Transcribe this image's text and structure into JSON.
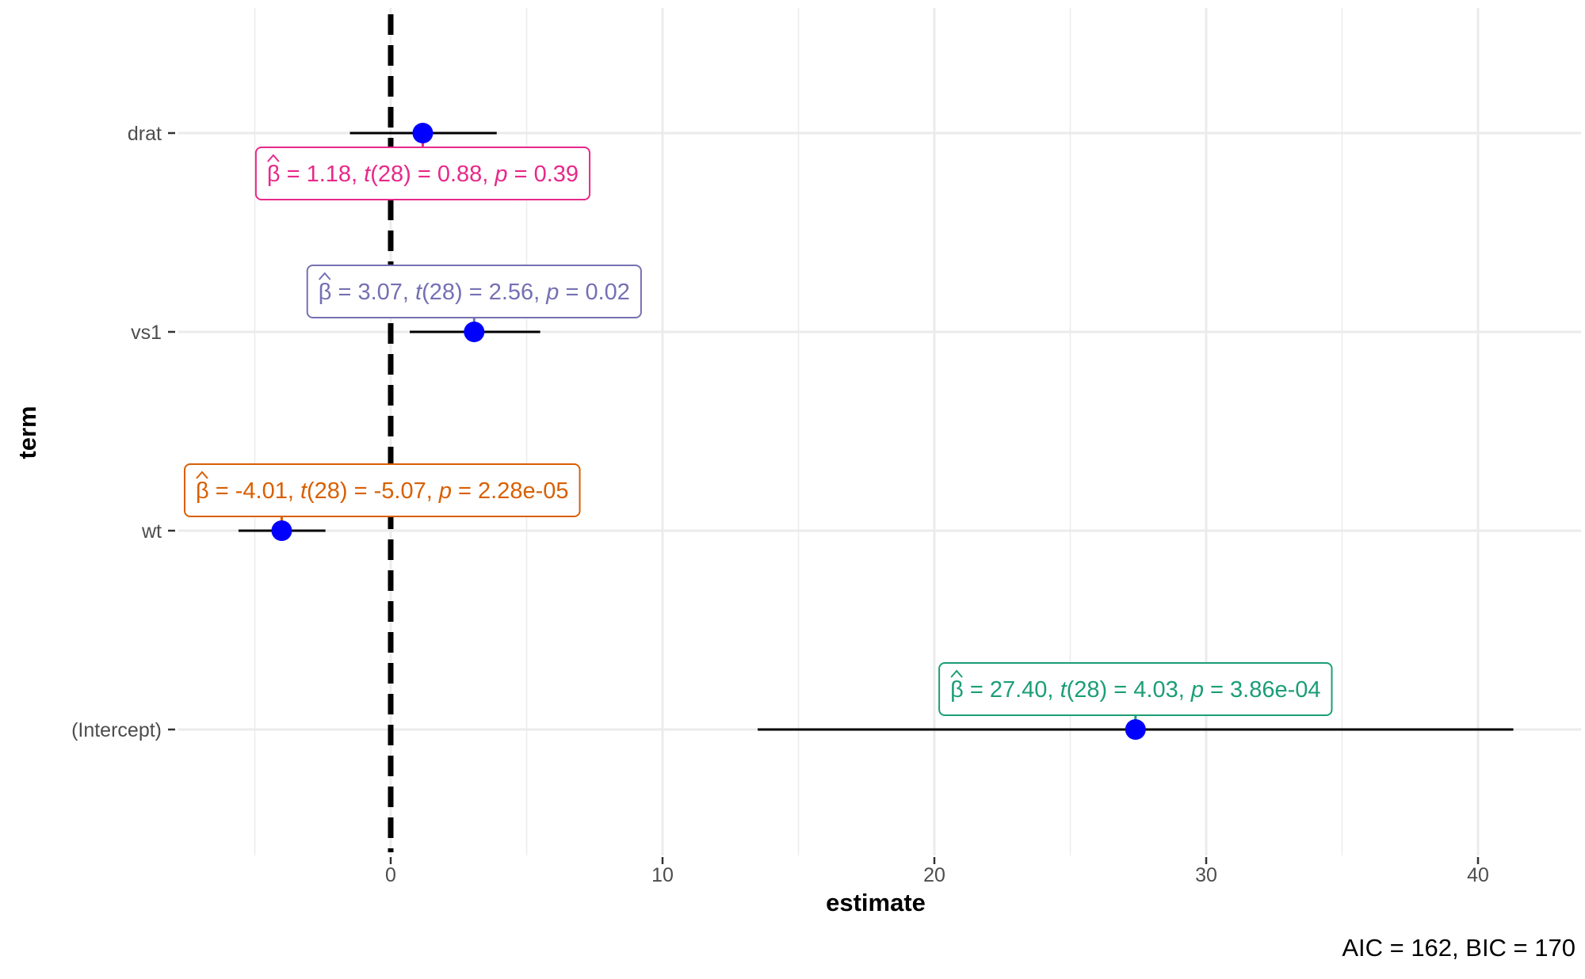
{
  "chart_data": {
    "type": "scatter",
    "xlabel": "estimate",
    "ylabel": "term",
    "xlim": [
      -8.5,
      43
    ],
    "x_ticks": [
      0,
      10,
      20,
      30,
      40
    ],
    "x_tick_labels": [
      "0",
      "10",
      "20",
      "30",
      "40"
    ],
    "x_minor_ticks": [
      -5,
      5,
      15,
      25,
      35
    ],
    "reference_line_x": 0,
    "grid": true,
    "caption": "AIC = 162, BIC = 170",
    "terms": [
      {
        "term": "drat",
        "estimate": 1.18,
        "conf_low": -1.5,
        "conf_high": 3.9,
        "label": {
          "beta": "1.18",
          "df": "28",
          "t": "0.88",
          "p": "0.39",
          "position": "below",
          "color": "#e7298a"
        }
      },
      {
        "term": "vs1",
        "estimate": 3.07,
        "conf_low": 0.7,
        "conf_high": 5.5,
        "label": {
          "beta": "3.07",
          "df": "28",
          "t": "2.56",
          "p": "0.02",
          "position": "above",
          "color": "#7570b3"
        }
      },
      {
        "term": "wt",
        "estimate": -4.01,
        "conf_low": -5.6,
        "conf_high": -2.4,
        "label": {
          "beta": "-4.01",
          "df": "28",
          "t": "-5.07",
          "p": "2.28e-05",
          "position": "above",
          "color": "#d95f02"
        }
      },
      {
        "term": "(Intercept)",
        "estimate": 27.4,
        "conf_low": 13.5,
        "conf_high": 41.3,
        "label": {
          "beta": "27.40",
          "df": "28",
          "t": "4.03",
          "p": "3.86e-04",
          "position": "above",
          "color": "#1b9e77"
        }
      }
    ],
    "colors": {
      "point": "#0000ff",
      "error_bar": "#000000",
      "grid": "#ebebeb",
      "reference_line": "#000000"
    }
  }
}
